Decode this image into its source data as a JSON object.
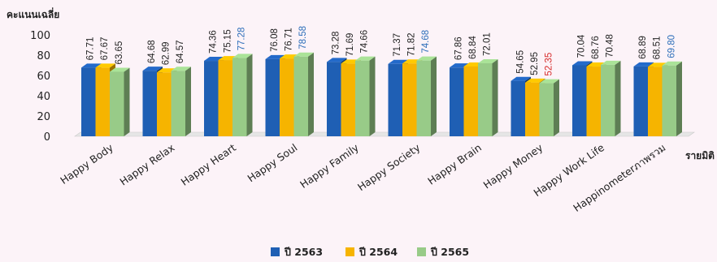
{
  "chart_data": {
    "type": "bar",
    "title": "",
    "ylabel": "คะแนนเฉลี่ย",
    "xlabel": "รายมิติ",
    "ylim": [
      0,
      100
    ],
    "yticks": [
      0,
      20,
      40,
      60,
      80,
      100
    ],
    "grid": false,
    "legend": "bottom",
    "categories": [
      "Happy Body",
      "Happy Relax",
      "Happy Heart",
      "Happy Soul",
      "Happy Family",
      "Happy Society",
      "Happy Brain",
      "Happy Money",
      "Happy Work Life",
      "Happinometerภาพรวม"
    ],
    "series": [
      {
        "name": "ปี 2563",
        "color": "#1f5fb4",
        "values": [
          67.71,
          64.68,
          74.36,
          76.08,
          73.28,
          71.37,
          67.86,
          54.65,
          70.04,
          68.89
        ]
      },
      {
        "name": "ปี 2564",
        "color": "#f6b400",
        "values": [
          67.67,
          62.99,
          75.15,
          76.71,
          71.69,
          71.82,
          68.84,
          52.95,
          68.76,
          68.51
        ]
      },
      {
        "name": "ปี 2565",
        "color": "#98cb88",
        "values": [
          63.65,
          64.57,
          77.28,
          78.58,
          74.66,
          74.68,
          72.01,
          52.35,
          70.48,
          69.8
        ]
      }
    ],
    "label_colors": [
      [
        "#222222",
        "#222222",
        "#222222",
        "#222222",
        "#222222",
        "#222222",
        "#222222",
        "#222222",
        "#222222",
        "#222222"
      ],
      [
        "#222222",
        "#222222",
        "#222222",
        "#222222",
        "#222222",
        "#222222",
        "#222222",
        "#222222",
        "#222222",
        "#222222"
      ],
      [
        "#222222",
        "#222222",
        "#2e6fba",
        "#2e6fba",
        "#222222",
        "#2e6fba",
        "#222222",
        "#d62b2b",
        "#222222",
        "#2e6fba"
      ]
    ]
  }
}
